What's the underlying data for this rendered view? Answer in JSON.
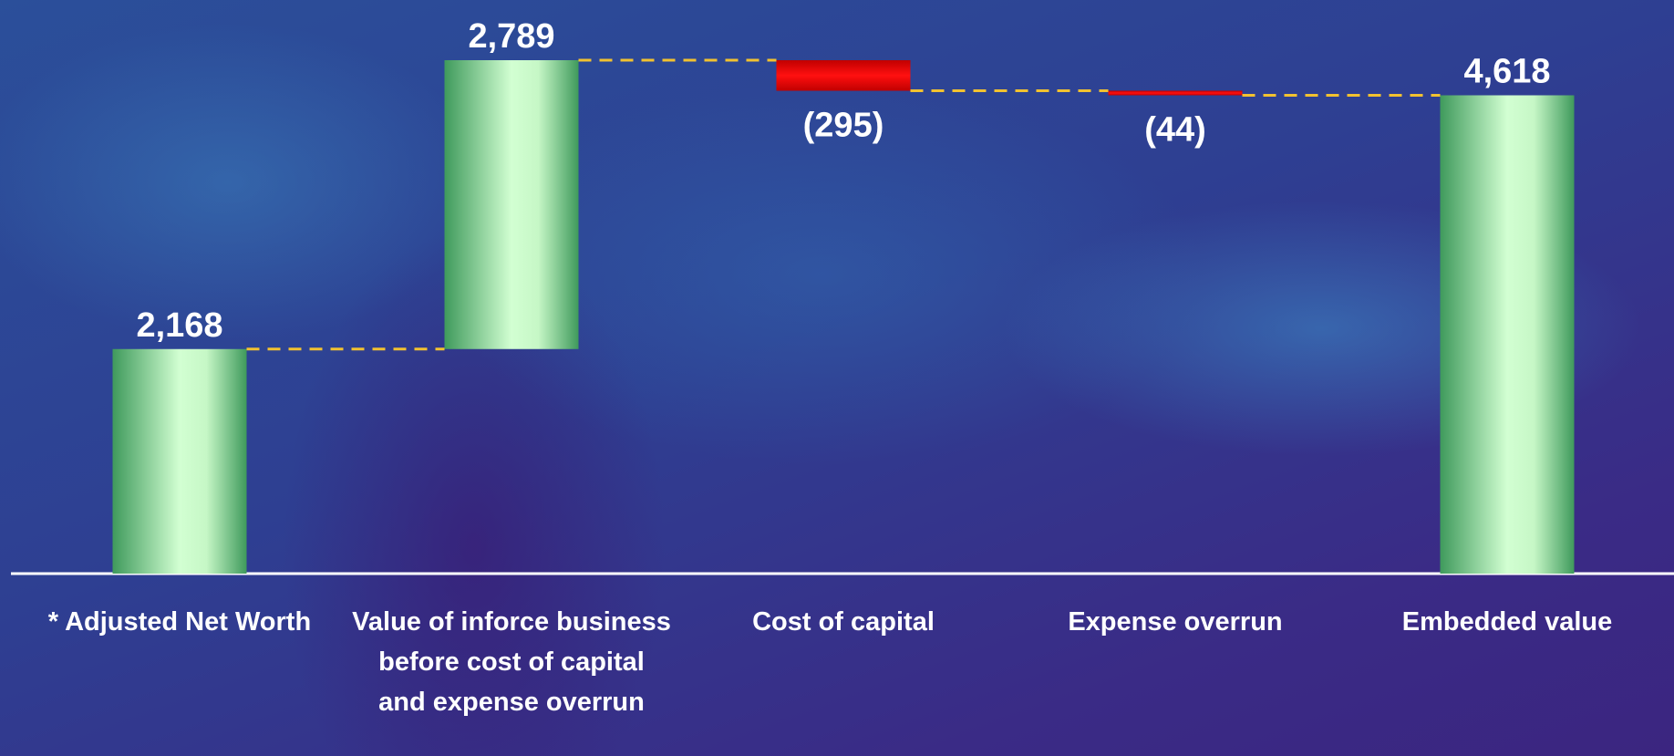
{
  "chart_data": {
    "type": "waterfall",
    "categories": [
      "* Adjusted Net Worth",
      "Value of inforce business before cost of capital and expense overrun",
      "Cost of capital",
      "Expense overrun",
      "Embedded value"
    ],
    "values": [
      2168,
      2789,
      -295,
      -44,
      4618
    ],
    "value_labels": [
      "2,168",
      "2,789",
      "(295)",
      "(44)",
      "4,618"
    ],
    "colors": {
      "increase": "#6ed38a",
      "decrease": "#e00000",
      "connector": "#f2c230"
    }
  }
}
